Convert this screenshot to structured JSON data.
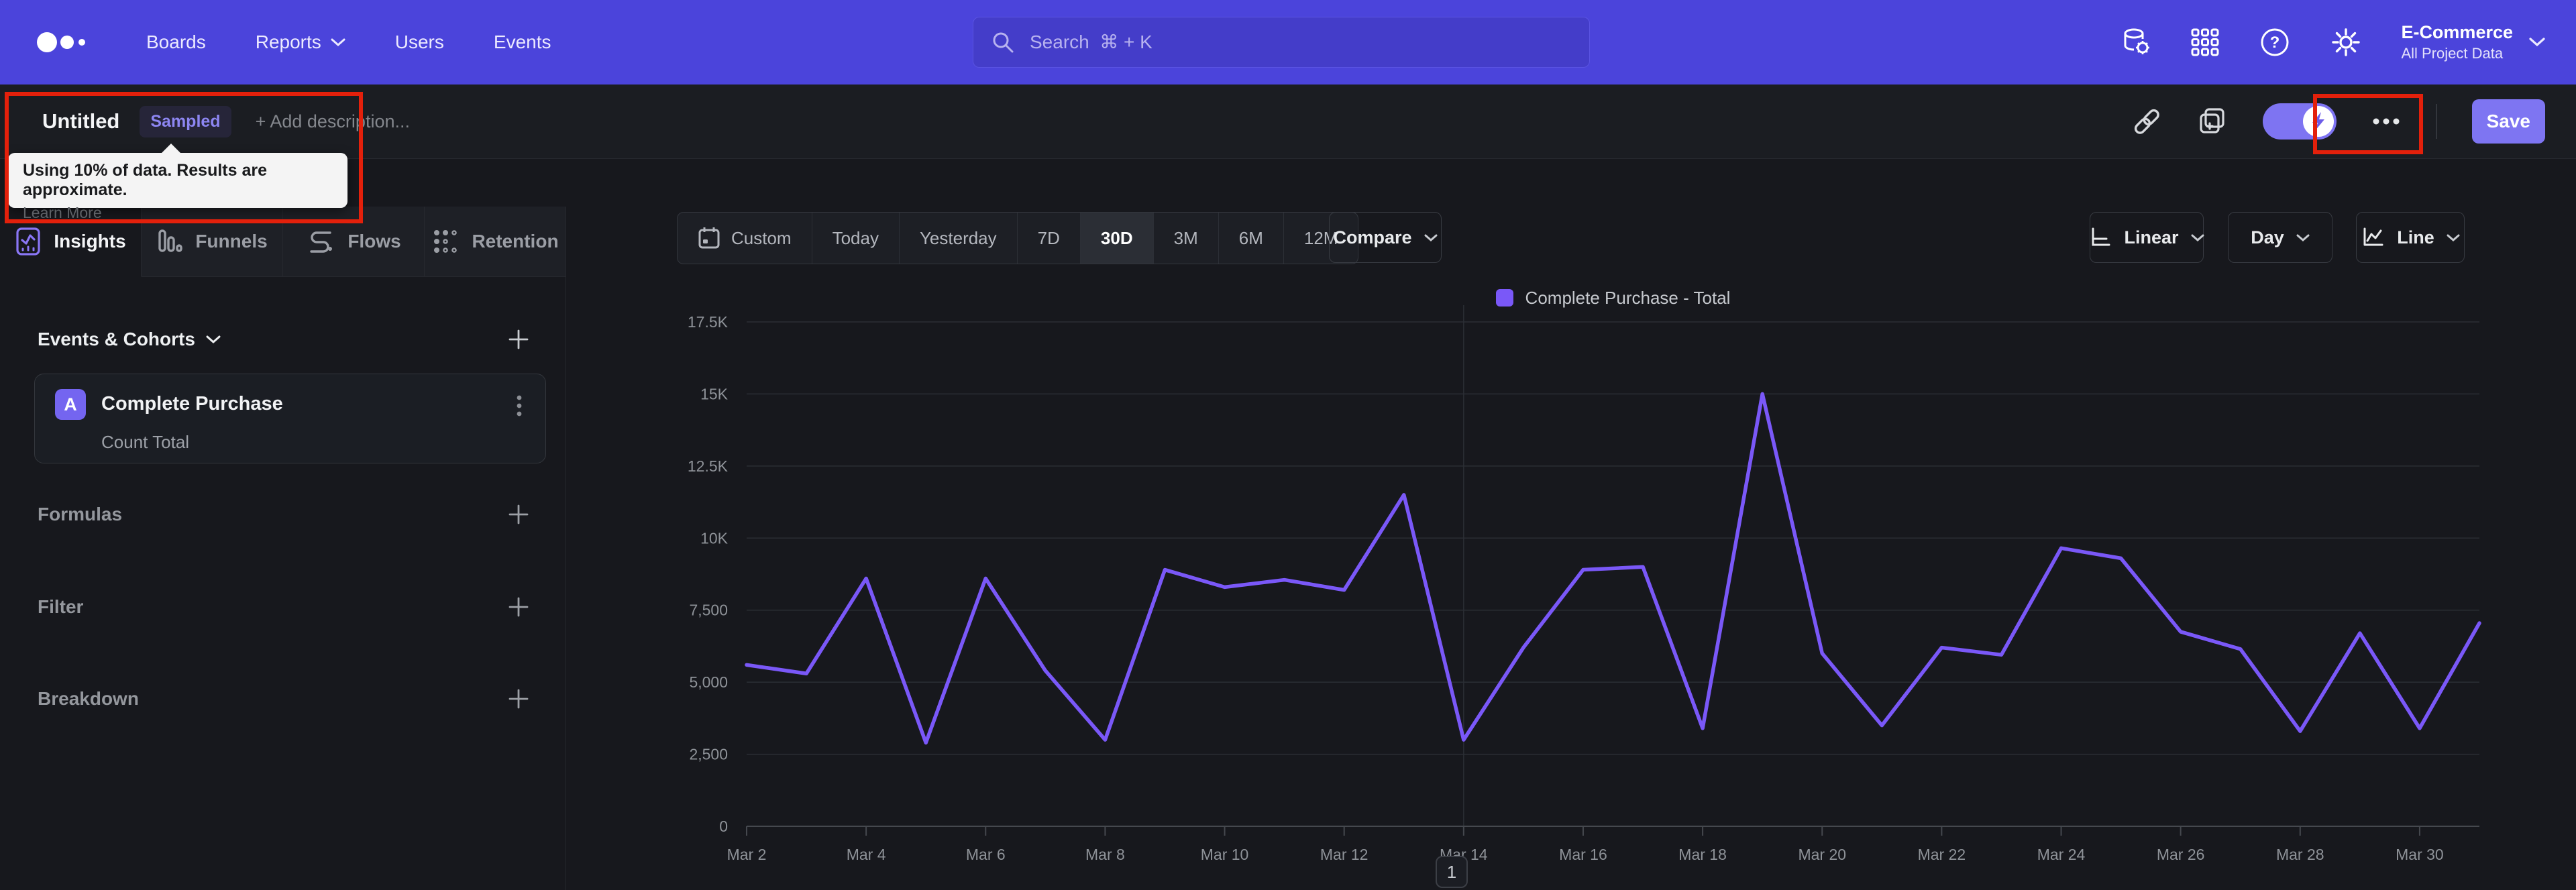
{
  "nav": {
    "items": [
      "Boards",
      "Reports",
      "Users",
      "Events"
    ],
    "search_placeholder": "Search  ⌘ + K",
    "project": {
      "name": "E-Commerce",
      "scope": "All Project Data"
    }
  },
  "header": {
    "title": "Untitled",
    "badge": "Sampled",
    "add_description": "+ Add description...",
    "save_label": "Save",
    "tooltip": {
      "line1": "Using 10% of data. Results are approximate.",
      "link": "Learn More"
    }
  },
  "sidebar": {
    "tabs": [
      {
        "label": "Insights"
      },
      {
        "label": "Funnels"
      },
      {
        "label": "Flows"
      },
      {
        "label": "Retention"
      }
    ],
    "events_header": "Events & Cohorts",
    "event_card": {
      "badge": "A",
      "title": "Complete Purchase",
      "subtitle": "Count Total"
    },
    "sections": [
      {
        "label": "Formulas"
      },
      {
        "label": "Filter"
      },
      {
        "label": "Breakdown"
      }
    ]
  },
  "controls": {
    "ranges": [
      "Custom",
      "Today",
      "Yesterday",
      "7D",
      "30D",
      "3M",
      "6M",
      "12M"
    ],
    "active_range": "30D",
    "compare": "Compare",
    "scale": "Linear",
    "granularity": "Day",
    "chart_type": "Line"
  },
  "chart_data": {
    "type": "line",
    "title": "Complete Purchase - Total",
    "x": [
      "Mar 2",
      "Mar 3",
      "Mar 4",
      "Mar 5",
      "Mar 6",
      "Mar 7",
      "Mar 8",
      "Mar 9",
      "Mar 10",
      "Mar 11",
      "Mar 12",
      "Mar 13",
      "Mar 14",
      "Mar 15",
      "Mar 16",
      "Mar 17",
      "Mar 18",
      "Mar 19",
      "Mar 20",
      "Mar 21",
      "Mar 22",
      "Mar 23",
      "Mar 24",
      "Mar 25",
      "Mar 26",
      "Mar 27",
      "Mar 28",
      "Mar 29",
      "Mar 30",
      "Mar 31"
    ],
    "series": [
      {
        "name": "Complete Purchase - Total",
        "color": "#7a58f8",
        "values": [
          5600,
          5300,
          8600,
          2900,
          8600,
          5400,
          3000,
          8900,
          8300,
          8550,
          8200,
          11500,
          3000,
          6200,
          8900,
          9000,
          3400,
          15000,
          6000,
          3500,
          6200,
          5950,
          9650,
          9300,
          6750,
          6150,
          3300,
          6700,
          3400,
          7050
        ]
      }
    ],
    "x_tick_every": 2,
    "y_ticks": [
      0,
      2500,
      5000,
      7500,
      10000,
      12500,
      15000,
      17500
    ],
    "y_tick_labels": [
      "0",
      "2,500",
      "5,000",
      "7,500",
      "10K",
      "12.5K",
      "15K",
      "17.5K"
    ],
    "ylim": [
      0,
      17500
    ],
    "grid": "horizontal",
    "vertical_gridline_at": "Mar 14",
    "legend_position": "top-center"
  },
  "pagination": {
    "page": "1"
  },
  "colors": {
    "nav_bg": "#4b44db",
    "line": "#7a58f8",
    "save_button": "#7e75f2",
    "annotation": "#e3200b",
    "sampled_badge_text": "#8d86f2"
  },
  "icons": {
    "logo": "mixpanel-dots",
    "search": "magnifier",
    "data": "database-gear",
    "apps": "grid-3x3",
    "help": "question-circle",
    "settings": "gear",
    "share": "chain-link",
    "add_to_board": "copy-plus",
    "sampling": "lightning-bolt",
    "more": "ellipsis",
    "insights": "chart-card",
    "funnels": "bars",
    "flows": "s-curve",
    "retention": "dot-grid",
    "custom_range": "calendar",
    "scale": "axis-l",
    "chart_type": "trend-line"
  }
}
